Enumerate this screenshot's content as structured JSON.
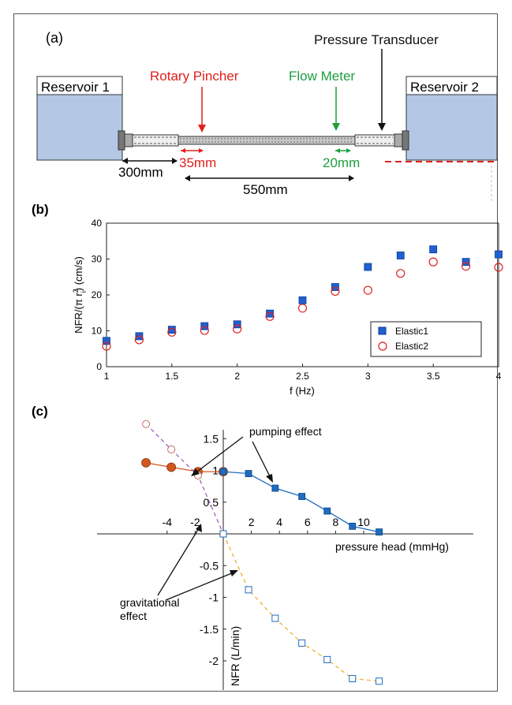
{
  "panel_a": {
    "label": "(a)",
    "reservoir1": "Reservoir 1",
    "reservoir2": "Reservoir 2",
    "rotary_pincher": "Rotary Pincher",
    "flow_meter": "Flow Meter",
    "pressure_transducer": "Pressure Transducer",
    "dim_300": "300mm",
    "dim_35": "35mm",
    "dim_20": "20mm",
    "dim_550": "550mm",
    "colors": {
      "reservoir": "#b4c8e6",
      "pincher": "#e0201b",
      "flow": "#1e9e3c"
    }
  },
  "panel_b": {
    "label": "(b)",
    "ylabel_main": "NFR/(π r",
    "ylabel_sup": "2",
    "ylabel_sub": "i",
    "ylabel_tail": ") (cm/s)",
    "xlabel": "f (Hz)",
    "xticks": [
      "1",
      "1.5",
      "2",
      "2.5",
      "3",
      "3.5",
      "4"
    ],
    "yticks": [
      "0",
      "10",
      "20",
      "30",
      "40"
    ]
  },
  "panel_c": {
    "label": "(c)",
    "xlabel": "pressure head (mmHg)",
    "ylabel": "NFR (L/min)",
    "xticks": [
      "-4",
      "-2",
      "2",
      "4",
      "6",
      "8",
      "10"
    ],
    "yticks_pos": [
      "0.5",
      "1",
      "1.5"
    ],
    "yticks_neg": [
      "-0.5",
      "-1",
      "-1.5",
      "-2"
    ],
    "annotation_pumping": "pumping effect",
    "annotation_grav_1": "gravitational",
    "annotation_grav_2": "effect"
  },
  "chart_data": [
    {
      "type": "scatter",
      "xlabel": "f (Hz)",
      "ylabel": "NFR/(π r_i^2) (cm/s)",
      "xlim": [
        1,
        4
      ],
      "ylim": [
        0,
        40
      ],
      "legend_position": "bottom-right",
      "series": [
        {
          "name": "Elastic1",
          "marker": "filled-square",
          "color": "#2060d0",
          "x": [
            1,
            1.25,
            1.5,
            1.75,
            2,
            2.25,
            2.5,
            2.75,
            3,
            3.25,
            3.5,
            3.75,
            4
          ],
          "y": [
            7.2,
            8.5,
            10.3,
            11.3,
            11.8,
            14.8,
            18.5,
            22.2,
            27.8,
            31.0,
            32.7,
            29.2,
            31.3
          ]
        },
        {
          "name": "Elastic2",
          "marker": "open-circle",
          "color": "#e02020",
          "x": [
            1,
            1.25,
            1.5,
            1.75,
            2,
            2.25,
            2.5,
            2.75,
            3,
            3.25,
            3.5,
            3.75,
            4
          ],
          "y": [
            5.7,
            7.5,
            9.6,
            10.1,
            10.5,
            14.0,
            16.3,
            21.0,
            21.3,
            26.0,
            29.2,
            28.0,
            27.7
          ]
        }
      ]
    },
    {
      "type": "line",
      "xlabel": "pressure head (mmHg)",
      "ylabel": "NFR (L/min)",
      "xlim": [
        -5.5,
        12
      ],
      "ylim": [
        -2.45,
        1.95
      ],
      "series": [
        {
          "marker": "filled-circle",
          "line": "solid",
          "color": "#d2561e",
          "x": [
            -5.5,
            -3.7,
            -1.8,
            0
          ],
          "y": [
            1.12,
            1.05,
            0.98,
            0.98
          ]
        },
        {
          "marker": "filled-square",
          "line": "solid",
          "color": "#1e6cbf",
          "x": [
            0,
            1.8,
            3.7,
            5.6,
            7.4,
            9.2,
            11.1
          ],
          "y": [
            0.98,
            0.95,
            0.72,
            0.59,
            0.36,
            0.12,
            0.03
          ]
        },
        {
          "marker": "open-circle",
          "line": "dashed",
          "color": "#a060c0",
          "x": [
            -5.5,
            -3.7,
            -1.8,
            0
          ],
          "y": [
            1.73,
            1.33,
            0.92,
            0.0
          ]
        },
        {
          "marker": "open-square",
          "line": "dashed",
          "color": "#f0b030",
          "x": [
            0,
            1.8,
            3.7,
            5.6,
            7.4,
            9.2,
            11.1
          ],
          "y": [
            0.0,
            -0.88,
            -1.33,
            -1.72,
            -1.98,
            -2.28,
            -2.32
          ]
        }
      ]
    }
  ]
}
